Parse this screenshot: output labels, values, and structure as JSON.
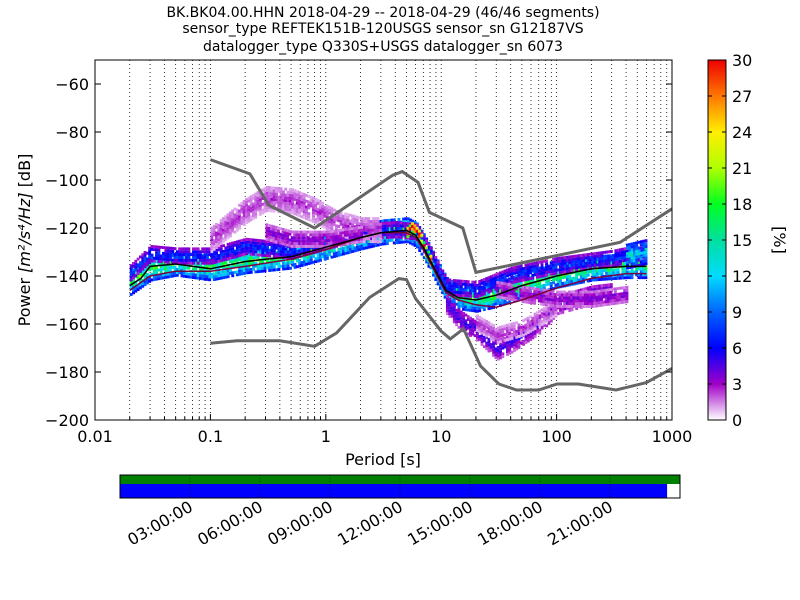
{
  "chart_data": {
    "type": "heatmap",
    "title_lines": [
      "BK.BK04.00.HHN   2018-04-29 -- 2018-04-29  (46/46 segments)",
      "sensor_type REFTEK151B-120USGS sensor_sn G12187VS",
      "datalogger_type Q330S+USGS datalogger_sn 6073"
    ],
    "xlabel": "Period [s]",
    "ylabel_main": "Power ",
    "ylabel_units": "[m²/s⁴/Hz]",
    "ylabel_db": " [dB]",
    "x_scale": "log",
    "xlim": [
      0.01,
      1000
    ],
    "ylim": [
      -200,
      -50
    ],
    "x_ticks": [
      {
        "v": 0.01,
        "label": "0.01"
      },
      {
        "v": 0.1,
        "label": "0.1"
      },
      {
        "v": 1,
        "label": "1"
      },
      {
        "v": 10,
        "label": "10"
      },
      {
        "v": 100,
        "label": "100"
      },
      {
        "v": 1000,
        "label": "1000"
      }
    ],
    "y_ticks": [
      {
        "v": -60,
        "label": "−60"
      },
      {
        "v": -80,
        "label": "−80"
      },
      {
        "v": -100,
        "label": "−100"
      },
      {
        "v": -120,
        "label": "−120"
      },
      {
        "v": -140,
        "label": "−140"
      },
      {
        "v": -160,
        "label": "−160"
      },
      {
        "v": -180,
        "label": "−180"
      },
      {
        "v": -200,
        "label": "−200"
      }
    ],
    "grid": "dotted-vertical",
    "colorbar": {
      "label": "[%]",
      "range": [
        0,
        30
      ],
      "ticks": [
        {
          "v": 0,
          "label": "0"
        },
        {
          "v": 3,
          "label": "3"
        },
        {
          "v": 6,
          "label": "6"
        },
        {
          "v": 9,
          "label": "9"
        },
        {
          "v": 12,
          "label": "12"
        },
        {
          "v": 15,
          "label": "15"
        },
        {
          "v": 18,
          "label": "18"
        },
        {
          "v": 21,
          "label": "21"
        },
        {
          "v": 24,
          "label": "24"
        },
        {
          "v": 27,
          "label": "27"
        },
        {
          "v": 30,
          "label": "30"
        }
      ]
    },
    "noise_model_high": [
      [
        0.1,
        -91.5
      ],
      [
        0.22,
        -97.4
      ],
      [
        0.32,
        -110.5
      ],
      [
        0.8,
        -120
      ],
      [
        3.8,
        -98
      ],
      [
        4.6,
        -96.5
      ],
      [
        6.3,
        -101
      ],
      [
        7.9,
        -113.5
      ],
      [
        15.4,
        -120
      ],
      [
        20,
        -138.5
      ],
      [
        354,
        -126
      ],
      [
        1000,
        -112
      ]
    ],
    "noise_model_low": [
      [
        0.1,
        -168
      ],
      [
        0.17,
        -167
      ],
      [
        0.4,
        -167
      ],
      [
        0.8,
        -169.3
      ],
      [
        1.24,
        -163.7
      ],
      [
        2.4,
        -148.9
      ],
      [
        4.3,
        -141.1
      ],
      [
        5,
        -141.5
      ],
      [
        6,
        -149.4
      ],
      [
        10,
        -163
      ],
      [
        12,
        -166.2
      ],
      [
        15.6,
        -162
      ],
      [
        21.9,
        -177.5
      ],
      [
        31.6,
        -185
      ],
      [
        45,
        -187.5
      ],
      [
        70,
        -187.5
      ],
      [
        101,
        -185
      ],
      [
        154,
        -185
      ],
      [
        328,
        -187.5
      ],
      [
        600,
        -184.4
      ],
      [
        1000,
        -178.5
      ]
    ],
    "mode_curve": [
      [
        0.02,
        -144
      ],
      [
        0.025,
        -141
      ],
      [
        0.03,
        -136
      ],
      [
        0.05,
        -135
      ],
      [
        0.1,
        -137
      ],
      [
        0.2,
        -134
      ],
      [
        0.3,
        -133
      ],
      [
        0.5,
        -132
      ],
      [
        1,
        -128
      ],
      [
        2,
        -124
      ],
      [
        3,
        -122
      ],
      [
        5,
        -121
      ],
      [
        6,
        -123
      ],
      [
        7,
        -128
      ],
      [
        9,
        -138
      ],
      [
        11,
        -146
      ],
      [
        14,
        -149
      ],
      [
        20,
        -150
      ],
      [
        30,
        -148
      ],
      [
        50,
        -144
      ],
      [
        100,
        -140
      ],
      [
        200,
        -137
      ],
      [
        400,
        -136
      ],
      [
        600,
        -136
      ]
    ],
    "secondary_curve": [
      [
        0.02,
        -146
      ],
      [
        0.03,
        -140
      ],
      [
        0.05,
        -138
      ],
      [
        0.1,
        -138
      ],
      [
        0.2,
        -136
      ],
      [
        0.5,
        -133
      ],
      [
        1,
        -129
      ],
      [
        2,
        -124
      ],
      [
        3,
        -122
      ],
      [
        5,
        -122
      ],
      [
        6,
        -124
      ],
      [
        7,
        -129
      ],
      [
        9,
        -139
      ],
      [
        11,
        -147
      ],
      [
        14,
        -150
      ],
      [
        20,
        -152
      ],
      [
        30,
        -153
      ],
      [
        50,
        -150
      ],
      [
        100,
        -145
      ],
      [
        200,
        -141
      ],
      [
        400,
        -139
      ],
      [
        600,
        -139
      ]
    ],
    "density_bands": [
      {
        "center": [
          [
            0.02,
            -143
          ],
          [
            0.03,
            -137
          ],
          [
            0.05,
            -135
          ],
          [
            0.1,
            -137
          ],
          [
            0.2,
            -134
          ],
          [
            0.5,
            -132
          ],
          [
            1,
            -128
          ],
          [
            2,
            -124
          ],
          [
            3,
            -122
          ],
          [
            5,
            -121
          ],
          [
            6,
            -123
          ],
          [
            7,
            -128
          ],
          [
            9,
            -138
          ],
          [
            11,
            -146
          ],
          [
            14,
            -149
          ],
          [
            20,
            -150
          ],
          [
            30,
            -148
          ],
          [
            50,
            -144
          ],
          [
            100,
            -140
          ],
          [
            200,
            -137
          ],
          [
            400,
            -136
          ],
          [
            600,
            -136
          ]
        ],
        "width_db": 5,
        "pct": 14
      },
      {
        "center": [
          [
            0.02,
            -139
          ],
          [
            0.03,
            -131
          ],
          [
            0.05,
            -132
          ],
          [
            0.1,
            -132
          ],
          [
            0.2,
            -128
          ],
          [
            0.5,
            -130
          ],
          [
            1,
            -126
          ],
          [
            2,
            -122
          ],
          [
            4,
            -121
          ],
          [
            6,
            -122
          ],
          [
            8,
            -132
          ],
          [
            11,
            -145
          ],
          [
            20,
            -146
          ],
          [
            40,
            -140
          ],
          [
            100,
            -136
          ],
          [
            300,
            -133
          ],
          [
            600,
            -130
          ]
        ],
        "width_db": 3,
        "pct": 6
      },
      {
        "center": [
          [
            0.1,
            -125
          ],
          [
            0.2,
            -113
          ],
          [
            0.3,
            -108
          ],
          [
            0.5,
            -109
          ],
          [
            0.8,
            -113
          ],
          [
            1.2,
            -118
          ],
          [
            2,
            -121
          ],
          [
            3,
            -121
          ]
        ],
        "width_db": 5,
        "pct": 2
      },
      {
        "center": [
          [
            0.3,
            -122
          ],
          [
            0.5,
            -125
          ],
          [
            1,
            -125
          ],
          [
            2,
            -123
          ]
        ],
        "width_db": 3,
        "pct": 3
      },
      {
        "center": [
          [
            11,
            -152
          ],
          [
            14,
            -158
          ],
          [
            20,
            -163
          ],
          [
            30,
            -171
          ],
          [
            40,
            -168
          ],
          [
            70,
            -160
          ],
          [
            100,
            -152
          ],
          [
            200,
            -148
          ],
          [
            300,
            -147
          ]
        ],
        "width_db": 4,
        "pct": 4
      },
      {
        "center": [
          [
            20,
            -160
          ],
          [
            30,
            -165
          ],
          [
            50,
            -162
          ],
          [
            70,
            -158
          ],
          [
            100,
            -153
          ]
        ],
        "width_db": 3,
        "pct": 2
      },
      {
        "center": [
          [
            30,
            -146
          ],
          [
            50,
            -148
          ],
          [
            100,
            -150
          ],
          [
            200,
            -150
          ],
          [
            400,
            -148
          ]
        ],
        "width_db": 3,
        "pct": 3
      },
      {
        "center": [
          [
            400,
            -132
          ],
          [
            600,
            -130
          ]
        ],
        "width_db": 5,
        "pct": 11
      },
      {
        "center": [
          [
            5,
            -122
          ],
          [
            5.5,
            -120
          ],
          [
            6,
            -122
          ],
          [
            6.5,
            -124
          ],
          [
            7,
            -129
          ],
          [
            8,
            -134
          ]
        ],
        "width_db": 2,
        "pct": 28
      }
    ]
  },
  "timebar": {
    "ticks": [
      "03:00:00",
      "06:00:00",
      "09:00:00",
      "12:00:00",
      "15:00:00",
      "18:00:00",
      "21:00:00"
    ],
    "coverage_fraction": 0.977,
    "colors": {
      "data": "#0000ff",
      "gaps": "#008000"
    }
  }
}
